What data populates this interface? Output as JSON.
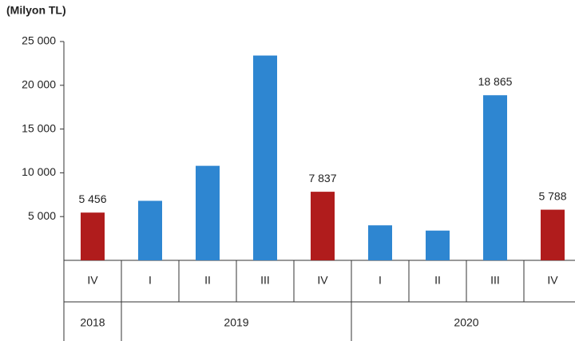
{
  "chart_data": {
    "type": "bar",
    "y_axis_label": "(Milyon TL)",
    "categories": [
      "IV",
      "I",
      "II",
      "III",
      "IV",
      "I",
      "II",
      "III",
      "IV"
    ],
    "groups": [
      {
        "name": "2018",
        "count": 1
      },
      {
        "name": "2019",
        "count": 4
      },
      {
        "name": "2020",
        "count": 4
      }
    ],
    "values": [
      5456,
      6800,
      10800,
      23400,
      7837,
      4000,
      3400,
      18865,
      5788
    ],
    "value_labels": [
      "5 456",
      null,
      null,
      null,
      "7 837",
      null,
      null,
      "18 865",
      "5 788"
    ],
    "colors": [
      "#b01c1c",
      "#2e86d1",
      "#2e86d1",
      "#2e86d1",
      "#b01c1c",
      "#2e86d1",
      "#2e86d1",
      "#2e86d1",
      "#b01c1c"
    ],
    "ylim": [
      0,
      25000
    ],
    "yticks": [
      {
        "value": 5000,
        "label": "5 000"
      },
      {
        "value": 10000,
        "label": "10 000"
      },
      {
        "value": 15000,
        "label": "15 000"
      },
      {
        "value": 20000,
        "label": "20 000"
      },
      {
        "value": 25000,
        "label": "25 000"
      }
    ],
    "grid": false
  }
}
